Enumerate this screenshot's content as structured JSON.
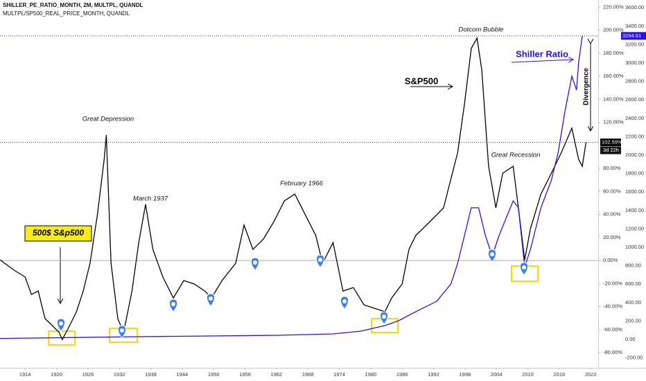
{
  "chart_data": {
    "type": "line",
    "xticks": [
      1914,
      1920,
      1926,
      1932,
      1938,
      1944,
      1950,
      1956,
      1962,
      1968,
      1974,
      1980,
      1986,
      1992,
      1998,
      2004,
      2010,
      2016,
      2022
    ],
    "xlim": [
      1909.2,
      2023.3
    ],
    "ylim": [
      -92.6,
      226.2
    ],
    "yticks": [
      {
        "value": 220,
        "label": "220.00%"
      },
      {
        "value": 200,
        "label": "200.00%"
      },
      {
        "value": 180,
        "label": "180.00%"
      },
      {
        "value": 160,
        "label": "160.00%"
      },
      {
        "value": 140,
        "label": "140.00%"
      },
      {
        "value": 120,
        "label": "120.00%"
      },
      {
        "value": 80,
        "label": "80.00%"
      },
      {
        "value": 60,
        "label": "60.00%"
      },
      {
        "value": 40,
        "label": "40.00%"
      },
      {
        "value": 20,
        "label": "20.00%"
      },
      {
        "value": 0,
        "label": "0.00%"
      },
      {
        "value": -20,
        "label": "-20.00%"
      },
      {
        "value": -40,
        "label": "-40.00%"
      },
      {
        "value": -60,
        "label": "-60.00%"
      },
      {
        "value": -80,
        "label": "-80.00%"
      }
    ],
    "y2lim": [
      -301,
      3684
    ],
    "y2ticks": [
      {
        "value": 3600,
        "label": "3600.00"
      },
      {
        "value": 3400,
        "label": "3400.00"
      },
      {
        "value": 3200,
        "label": "3200.00"
      },
      {
        "value": 3000,
        "label": "3000.00"
      },
      {
        "value": 2800,
        "label": "2800.00"
      },
      {
        "value": 2600,
        "label": "2600.00"
      },
      {
        "value": 2400,
        "label": "2400.00"
      },
      {
        "value": 2200,
        "label": "2200.00"
      },
      {
        "value": 2000,
        "label": "2000.00"
      },
      {
        "value": 1800,
        "label": "1800.00"
      },
      {
        "value": 1600,
        "label": "1600.00"
      },
      {
        "value": 1400,
        "label": "1400.00"
      },
      {
        "value": 1200,
        "label": "1200.00"
      },
      {
        "value": 1000,
        "label": "1000.00"
      },
      {
        "value": 800,
        "label": "800.00"
      },
      {
        "value": 600,
        "label": "600.00"
      },
      {
        "value": 400,
        "label": "400.00"
      },
      {
        "value": 200,
        "label": "200.00"
      },
      {
        "value": 0,
        "label": "0.00"
      },
      {
        "value": -200,
        "label": "-200.00"
      }
    ],
    "countdown": "3d 22h",
    "series": [
      {
        "name": "SHILLER_PE_RATIO_MONTH, 2M, MULTPL, QUANDL",
        "color": "#000000",
        "axis": "y",
        "last_label": "102.59%",
        "x": [
          1909.2,
          1911.9,
          1914,
          1915.2,
          1916.5,
          1917.8,
          1919.2,
          1920.5,
          1921.1,
          1922.5,
          1923.8,
          1925.1,
          1926.4,
          1927.8,
          1929.1,
          1929.5,
          1930.4,
          1931.7,
          1932.8,
          1934.4,
          1935.7,
          1937.0,
          1938.4,
          1940.3,
          1942.3,
          1944.3,
          1946.3,
          1948.3,
          1949.6,
          1951.6,
          1954.2,
          1955.8,
          1957.5,
          1959.5,
          1961.5,
          1963.5,
          1965.5,
          1967.5,
          1969.5,
          1970.8,
          1972.8,
          1974.7,
          1976.7,
          1978.7,
          1980.7,
          1982.7,
          1984.0,
          1986.0,
          1987.3,
          1988.6,
          1991.3,
          1993.9,
          1996.6,
          1997.9,
          1999.2,
          2000.3,
          2001.2,
          2002.5,
          2003.9,
          2005.2,
          2007.2,
          2008.2,
          2009.4,
          2010.5,
          2012.5,
          2014.5,
          2016.4,
          2018.4,
          2019.7,
          2020.4,
          2021.1
        ],
        "values": [
          0.6,
          -8.4,
          -14.4,
          -29.5,
          -26.5,
          -50.5,
          -56.5,
          -62.6,
          -68.6,
          -56.5,
          -44.5,
          -26.5,
          -2.4,
          39.7,
          87.8,
          108.9,
          -2.4,
          -50.5,
          -62.6,
          -26.5,
          15.6,
          48.7,
          9.6,
          -14.4,
          -32.5,
          -17.4,
          -20.4,
          -26.5,
          -32.5,
          -17.4,
          -2.4,
          30.7,
          9.6,
          18.6,
          33.7,
          51.7,
          57.7,
          39.7,
          21.7,
          -2.4,
          15.6,
          -26.5,
          -23.5,
          -38.5,
          -41.5,
          -44.5,
          -32.5,
          -20.4,
          9.6,
          21.7,
          33.7,
          45.7,
          93.8,
          135.9,
          184.1,
          193.1,
          166.0,
          81.8,
          45.7,
          75.8,
          81.8,
          45.7,
          0.6,
          27.7,
          57.7,
          75.8,
          93.8,
          114.9,
          87.8,
          81.8,
          102.59
        ]
      },
      {
        "name": "MULTPL/SP500_REAL_PRICE_MONTH, QUANDL",
        "color": "#2b12e0",
        "axis": "y2",
        "last_label": "3294.61",
        "x": [
          1909.2,
          1935.7,
          1962.2,
          1972.8,
          1978.1,
          1982.7,
          1985.3,
          1988.6,
          1992.6,
          1995.3,
          1996.6,
          1997.9,
          1999.2,
          2000.6,
          2001.9,
          2003.2,
          2004.5,
          2007.2,
          2008.2,
          2009.4,
          2010.5,
          2012.5,
          2014.5,
          2015.8,
          2017.1,
          2018.4,
          2019.3,
          2019.7,
          2020.4
        ],
        "values": [
          10,
          30,
          45,
          60,
          90,
          150,
          203,
          301,
          414,
          602,
          827,
          1128,
          1429,
          1429,
          1128,
          902,
          1128,
          1504,
          1429,
          789,
          977,
          1429,
          1729,
          2030,
          2481,
          2857,
          2707,
          3008,
          3294.61
        ]
      }
    ],
    "annotations": [
      "Great Depression",
      "March 1937",
      "February 1966",
      "Dotcom Bubble",
      "Great Recession",
      "S&P500",
      "Shiller Ratio",
      "Divergence",
      "500$ S&p500"
    ]
  }
}
